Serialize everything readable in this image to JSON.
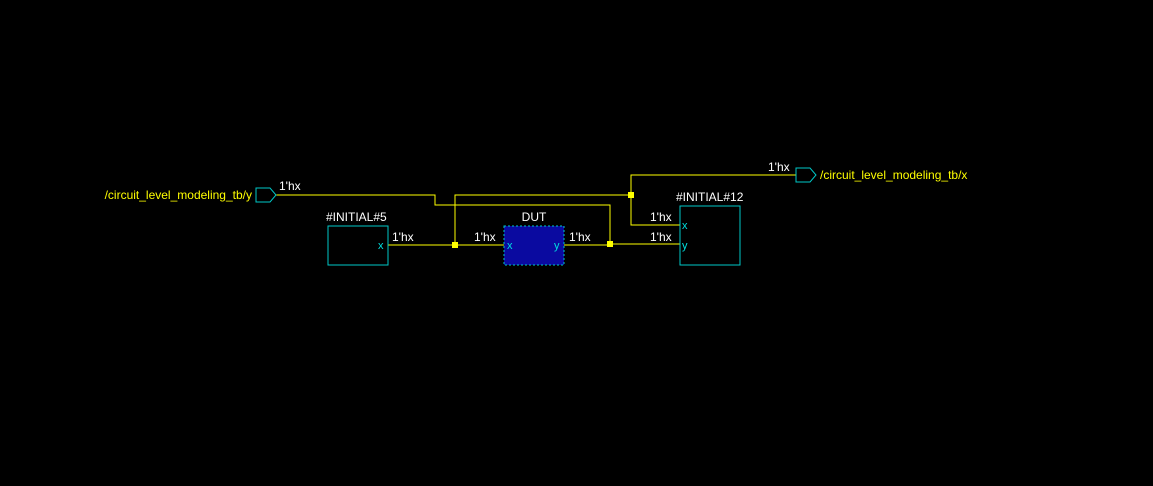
{
  "colors": {
    "background": "#000000",
    "wire": "#ffff00",
    "block_outline": "#00c8c8",
    "selected_fill": "#0a0aa0",
    "label_text": "#ffffff",
    "signal_text": "#ffff00",
    "port_text": "#00e0e0"
  },
  "signals": {
    "input_y": {
      "name": "/circuit_level_modeling_tb/y",
      "value": "1'hx"
    },
    "output_x": {
      "name": "/circuit_level_modeling_tb/x",
      "value": "1'hx"
    }
  },
  "blocks": {
    "initial5": {
      "title": "#INITIAL#5",
      "port_x": "x",
      "out_value": "1'hx"
    },
    "dut": {
      "title": "DUT",
      "port_in": "x",
      "port_out": "y",
      "in_value": "1'hx",
      "out_value": "1'hx"
    },
    "initial12": {
      "title": "#INITIAL#12",
      "port_x": "x",
      "port_y": "y",
      "x_value": "1'hx",
      "y_value": "1'hx"
    }
  }
}
